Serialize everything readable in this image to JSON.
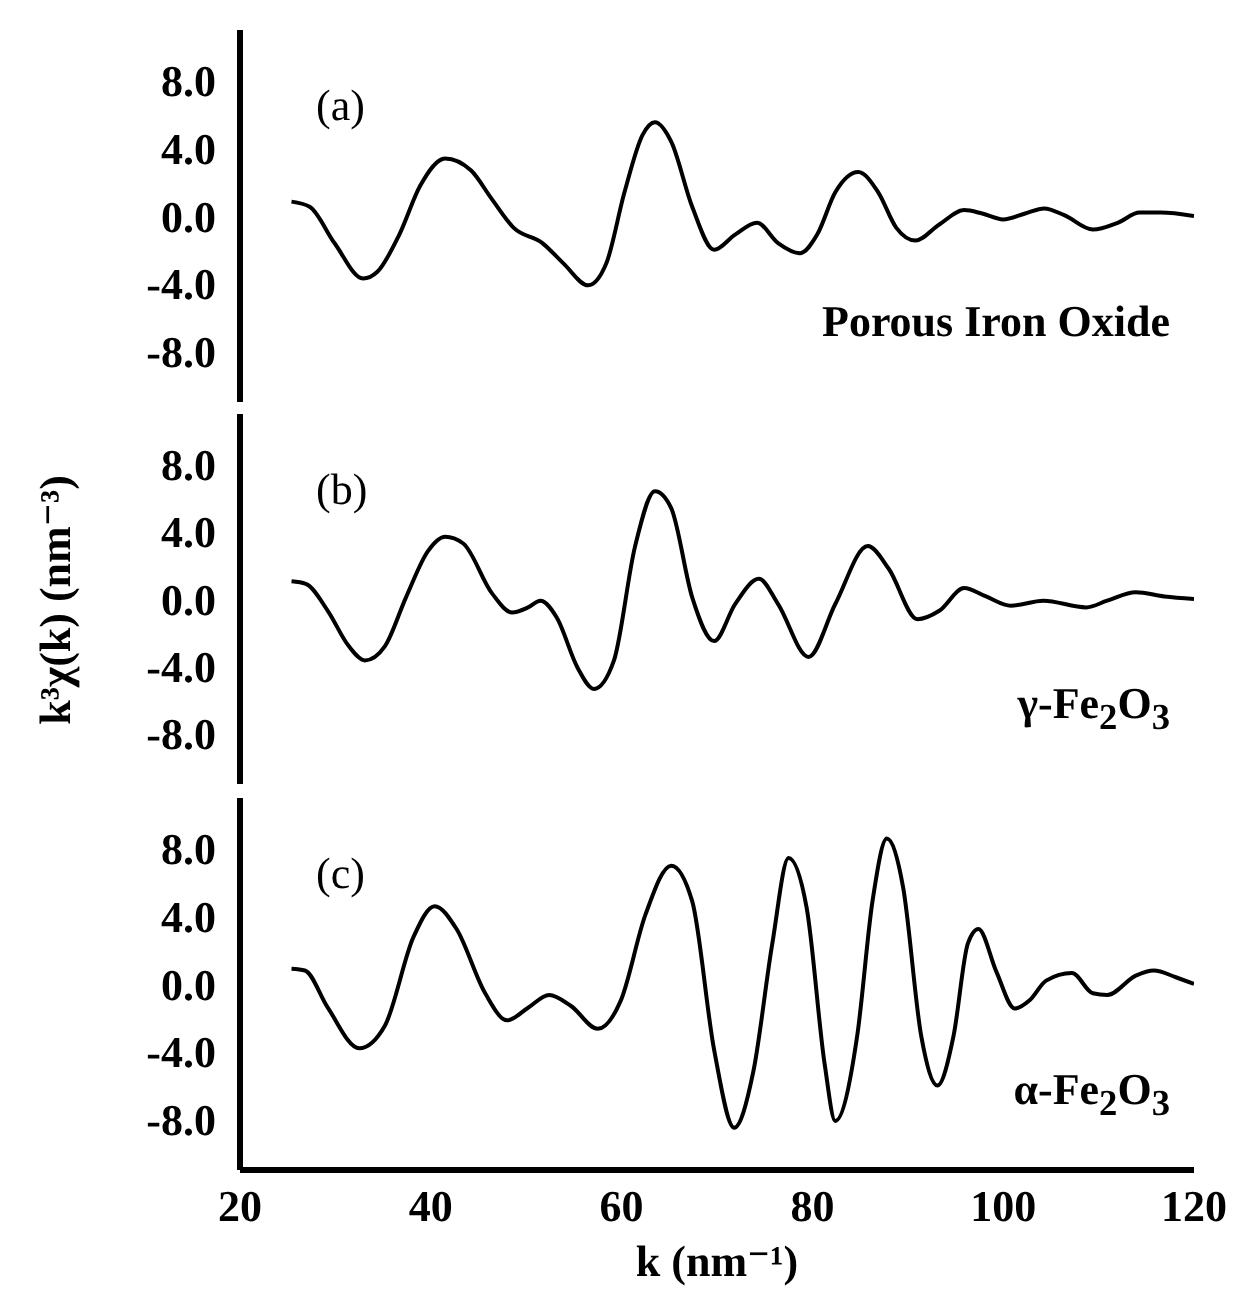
{
  "chart_data": [
    {
      "type": "line",
      "xlim": [
        20,
        120
      ],
      "xticks": [
        20,
        40,
        60,
        80,
        100,
        120
      ],
      "ylim": [
        -11,
        11
      ],
      "yticks": [
        {
          "value": 8,
          "label": "8.0"
        },
        {
          "value": 4,
          "label": "4.0"
        },
        {
          "value": 0,
          "label": "0.0"
        },
        {
          "value": -4,
          "label": "-4.0"
        },
        {
          "value": -8,
          "label": "-8.0"
        }
      ],
      "tick_labels": "y",
      "color": "#000000",
      "annotations": [
        "(a)",
        "Porous Iron Oxide"
      ],
      "x": [
        25.4,
        27.3,
        29.9,
        32.9,
        34.4,
        36.7,
        38.9,
        41.5,
        44.2,
        46.4,
        48.7,
        51.7,
        53.9,
        56.5,
        58.4,
        60.3,
        62.2,
        63.5,
        65.2,
        67.4,
        69.7,
        71.9,
        74.2,
        76.4,
        78.7,
        80.5,
        82.4,
        84.8,
        86.9,
        88.8,
        90.8,
        93.3,
        95.9,
        97.8,
        100,
        102.3,
        104.3,
        106.4,
        109.4,
        112.0,
        114.3,
        116.5,
        120
      ],
      "values": [
        0.85,
        0.55,
        -1.6,
        -3.7,
        -3.3,
        -1.1,
        1.8,
        3.4,
        2.7,
        1.0,
        -0.7,
        -1.6,
        -2.8,
        -4.1,
        -2.8,
        1.4,
        4.8,
        5.55,
        4.4,
        0.55,
        -2.0,
        -1.1,
        -0.4,
        -1.6,
        -2.2,
        -1.1,
        1.4,
        2.6,
        1.4,
        -0.7,
        -1.45,
        -0.5,
        0.35,
        0.15,
        -0.2,
        0.15,
        0.45,
        0.05,
        -0.8,
        -0.4,
        0.2,
        0.2,
        0
      ]
    },
    {
      "type": "line",
      "xlim": [
        20,
        120
      ],
      "xticks": [
        20,
        40,
        60,
        80,
        100,
        120
      ],
      "ylim": [
        -11,
        11
      ],
      "yticks": [
        {
          "value": 8,
          "label": "8.0"
        },
        {
          "value": 4,
          "label": "4.0"
        },
        {
          "value": 0,
          "label": "0.0"
        },
        {
          "value": -4,
          "label": "-4.0"
        },
        {
          "value": -8,
          "label": "-8.0"
        }
      ],
      "tick_labels": "y",
      "color": "#000000",
      "ylabel": "k³χ(k) (nm⁻³)",
      "annotations": [
        "(b)",
        "γ-Fe$_{2}$O$_{3}$"
      ],
      "x": [
        25.4,
        26.9,
        29.2,
        31.4,
        33.1,
        35.2,
        37.4,
        39.7,
        41.5,
        43.4,
        46.4,
        48.5,
        50.2,
        51.5,
        53.2,
        55.4,
        57.1,
        59.2,
        61.4,
        63.5,
        65.2,
        67.4,
        69.7,
        71.9,
        74.4,
        76.4,
        79.6,
        82.4,
        85.8,
        88.0,
        91.0,
        93.3,
        95.9,
        98.2,
        100.8,
        104.2,
        108.7,
        110.9,
        113.9,
        116.9,
        120
      ],
      "values": [
        1.05,
        0.9,
        -0.7,
        -2.8,
        -3.65,
        -2.8,
        0.1,
        2.85,
        3.7,
        3.3,
        0.35,
        -0.8,
        -0.5,
        -0.1,
        -1.1,
        -4.1,
        -5.35,
        -3.65,
        3.1,
        6.4,
        5.4,
        0.1,
        -2.5,
        -0.3,
        1.2,
        -0.3,
        -3.45,
        -0.3,
        3.15,
        1.8,
        -1.2,
        -0.7,
        0.65,
        0.15,
        -0.4,
        -0.1,
        -0.5,
        -0.1,
        0.4,
        0.15,
        0
      ]
    },
    {
      "type": "line",
      "xlim": [
        20,
        120
      ],
      "xticks": [
        20,
        40,
        60,
        80,
        100,
        120
      ],
      "ylim": [
        -11,
        11
      ],
      "yticks": [
        {
          "value": 8,
          "label": "8.0"
        },
        {
          "value": 4,
          "label": "4.0"
        },
        {
          "value": 0,
          "label": "0.0"
        },
        {
          "value": -4,
          "label": "-4.0"
        },
        {
          "value": -8,
          "label": "-8.0"
        }
      ],
      "color": "#000000",
      "xlabel": "k (nm⁻¹)",
      "annotations": [
        "(c)",
        "α-Fe$_{2}$O$_{3}$"
      ],
      "x": [
        25.4,
        26.8,
        29.2,
        32.5,
        35.2,
        38.2,
        40.4,
        42.7,
        45.7,
        48.0,
        50.2,
        52.4,
        54.7,
        57.5,
        59.9,
        62.5,
        65.2,
        67.4,
        69.7,
        71.8,
        73.8,
        75.8,
        77.5,
        79.4,
        81.3,
        82.4,
        84.7,
        86.3,
        87.8,
        89.5,
        91.4,
        93.1,
        94.8,
        96.3,
        97.4,
        99.3,
        101.2,
        102.8,
        104.5,
        107.2,
        109.4,
        110.9,
        113.9,
        115.8,
        118.1,
        120
      ],
      "values": [
        0.9,
        0.8,
        -1.4,
        -3.8,
        -2.45,
        2.8,
        4.6,
        3.25,
        -0.55,
        -2.15,
        -1.4,
        -0.65,
        -1.3,
        -2.65,
        -1.0,
        4.1,
        7.0,
        4.9,
        -3.9,
        -8.5,
        -5.2,
        2.4,
        7.45,
        4.5,
        -4.8,
        -8.1,
        -3.05,
        4.9,
        8.6,
        5.75,
        -3.05,
        -6.0,
        -3.05,
        2.4,
        3.25,
        0.7,
        -1.45,
        -0.95,
        0.2,
        0.65,
        -0.55,
        -0.65,
        0.5,
        0.8,
        0.4,
        0
      ]
    }
  ]
}
